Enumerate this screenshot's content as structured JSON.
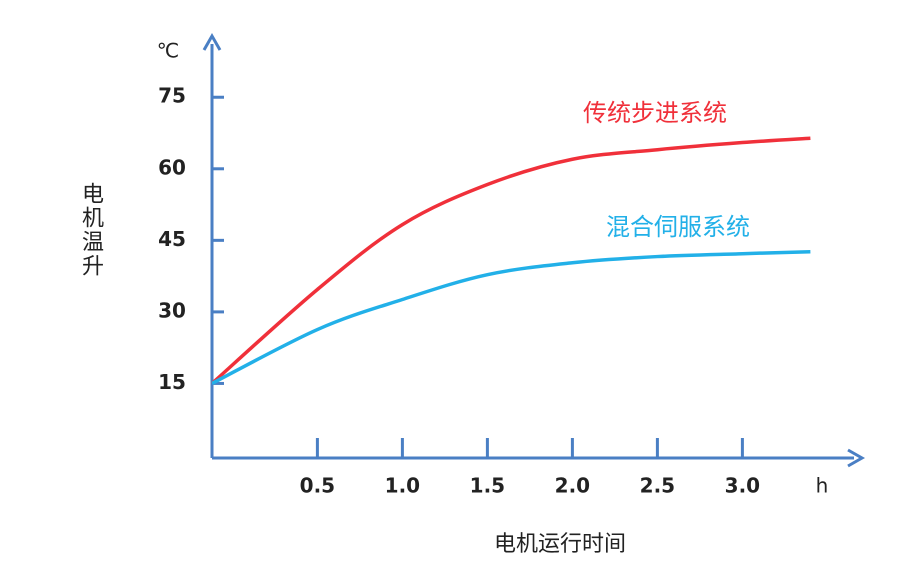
{
  "chart_data": {
    "type": "line",
    "y_label": "电机温升",
    "x_label": "电机运行时间",
    "y_unit": "℃",
    "x_unit": "h",
    "x": [
      -0.12,
      0.5,
      1.0,
      1.5,
      2.0,
      2.5,
      3.0,
      3.4
    ],
    "series": [
      {
        "name": "传统步进系统",
        "color": "#f0303a",
        "values": [
          15,
          34.7,
          48.3,
          56.7,
          62,
          64,
          65.5,
          66.4
        ]
      },
      {
        "name": "混合伺服系统",
        "color": "#22b0e8",
        "values": [
          15,
          26.3,
          32.6,
          37.8,
          40.3,
          41.6,
          42.2,
          42.6
        ]
      }
    ],
    "xlim": [
      -0.12,
      3.68
    ],
    "ylim": [
      0,
      87
    ],
    "xticks": [
      {
        "value": 0.5,
        "label": "0.5"
      },
      {
        "value": 1.0,
        "label": "1.0"
      },
      {
        "value": 1.5,
        "label": "1.5"
      },
      {
        "value": 2.0,
        "label": "2.0"
      },
      {
        "value": 2.5,
        "label": "2.5"
      },
      {
        "value": 3.0,
        "label": "3.0"
      }
    ],
    "yticks": [
      15,
      30,
      45,
      60,
      75
    ],
    "axis_color": "#4a7fc4"
  }
}
